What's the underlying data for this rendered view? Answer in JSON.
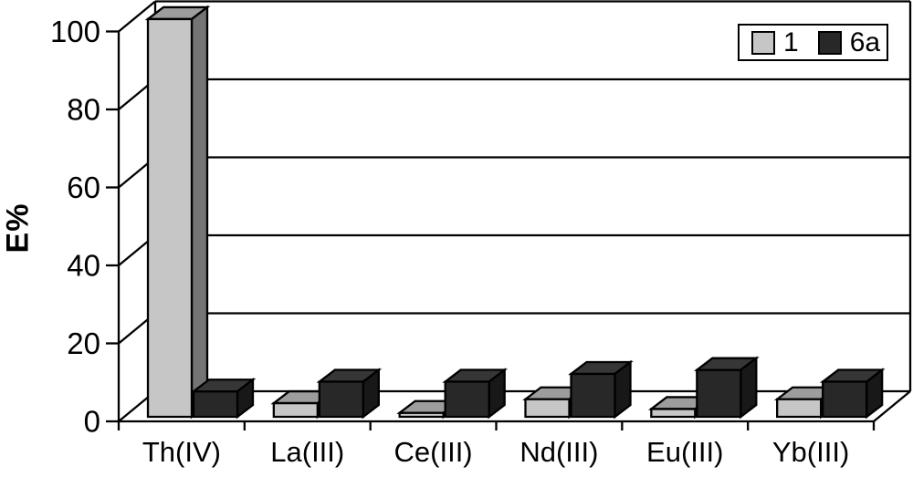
{
  "chart_data": {
    "type": "bar",
    "projection": "3d-clustered-column",
    "title": "",
    "xlabel": "",
    "ylabel": "E%",
    "ylim": [
      0,
      100
    ],
    "yticks": [
      0,
      20,
      40,
      60,
      80,
      100
    ],
    "grid": "horizontal gridlines on back wall",
    "legend_position": "top-right",
    "background": "#ffffff",
    "axis_color": "#000000",
    "outline_color": "#000000",
    "categories": [
      "Th(IV)",
      "La(III)",
      "Ce(III)",
      "Nd(III)",
      "Eu(III)",
      "Yb(III)"
    ],
    "series": [
      {
        "name": "1",
        "color_front": "#c6c6c6",
        "color_top": "#9d9d9d",
        "color_side": "#747474",
        "values": [
          102,
          3.5,
          1,
          4.5,
          2,
          4.5
        ]
      },
      {
        "name": "6a",
        "color_front": "#282828",
        "color_top": "#363636",
        "color_side": "#181818",
        "values": [
          6.5,
          9,
          9,
          11,
          12,
          9
        ]
      }
    ]
  }
}
